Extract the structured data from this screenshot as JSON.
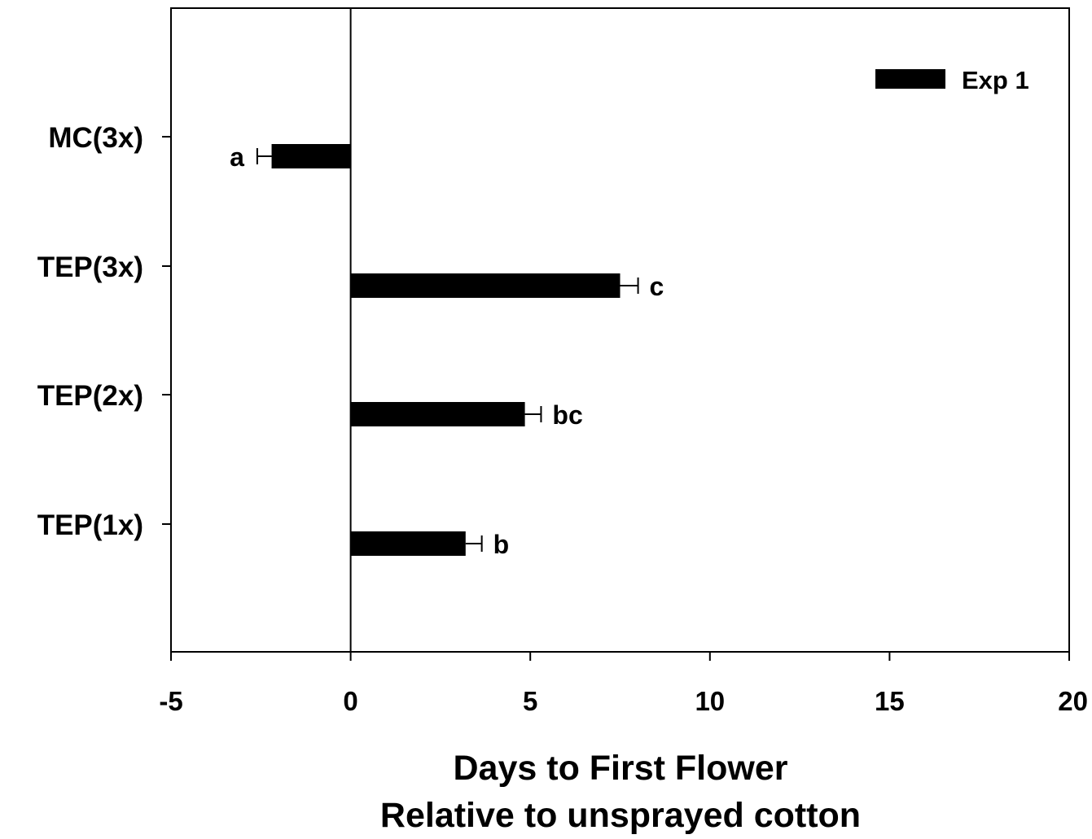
{
  "chart_data": {
    "type": "bar",
    "orientation": "horizontal",
    "categories": [
      "MC(3x)",
      "TEP(3x)",
      "TEP(2x)",
      "TEP(1x)"
    ],
    "series": [
      {
        "name": "Exp 1",
        "color": "#000000",
        "values": [
          -2.2,
          7.5,
          4.85,
          3.2
        ],
        "errors": [
          0.4,
          0.5,
          0.45,
          0.45
        ],
        "labels": [
          "a",
          "c",
          "bc",
          "b"
        ]
      }
    ],
    "xlim": [
      -5,
      20
    ],
    "xticks": [
      "-5",
      "0",
      "5",
      "10",
      "15",
      "20"
    ],
    "xlabel_lines": [
      "Days to First Flower",
      "Relative to unsprayed cotton"
    ],
    "ylabel": "",
    "title": "",
    "grid": false,
    "legend_position": "top-right",
    "zero_line": true
  }
}
